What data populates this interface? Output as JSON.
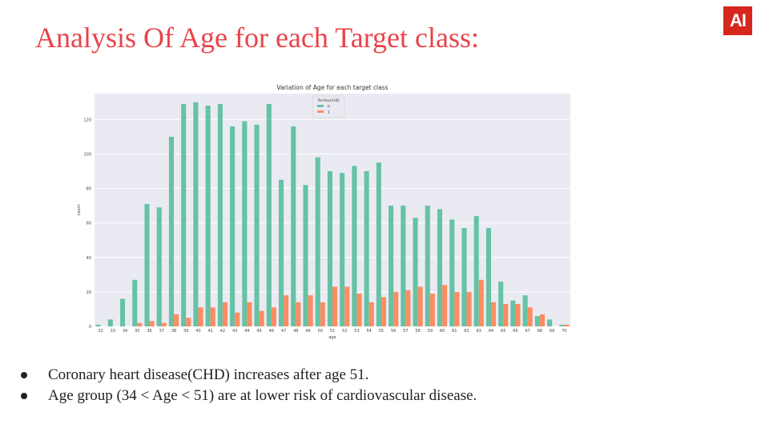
{
  "slide": {
    "title": "Analysis Of Age for each Target class:",
    "logo_text": "AI",
    "bullets": [
      "Coronary heart disease(CHD) increases after age 51.",
      "Age group (34 < Age < 51) are at lower risk of cardiovascular disease."
    ]
  },
  "colors": {
    "title": "#e8434a",
    "logo_bg": "#d7271d",
    "series0": "#66c2a5",
    "series1": "#fc8d62",
    "plot_bg": "#eaeaf2"
  },
  "chart_data": {
    "type": "bar",
    "title": "Variation of Age for each target class",
    "xlabel": "age",
    "ylabel": "count",
    "ylim": [
      0,
      135
    ],
    "yticks": [
      0,
      20,
      40,
      60,
      80,
      100,
      120
    ],
    "grid": true,
    "legend": {
      "title": "TenYearCHD",
      "placement": "top-center"
    },
    "categories": [
      "32",
      "33",
      "34",
      "35",
      "36",
      "37",
      "38",
      "39",
      "40",
      "41",
      "42",
      "43",
      "44",
      "45",
      "46",
      "47",
      "48",
      "49",
      "50",
      "51",
      "52",
      "53",
      "54",
      "55",
      "56",
      "57",
      "58",
      "59",
      "60",
      "61",
      "62",
      "63",
      "64",
      "65",
      "66",
      "67",
      "68",
      "69",
      "70"
    ],
    "series": [
      {
        "name": "0",
        "values": [
          1,
          4,
          16,
          27,
          71,
          69,
          110,
          129,
          130,
          128,
          129,
          116,
          119,
          117,
          129,
          85,
          116,
          82,
          98,
          90,
          89,
          93,
          90,
          95,
          70,
          70,
          63,
          70,
          68,
          62,
          57,
          64,
          57,
          26,
          15,
          18,
          6,
          4,
          1
        ]
      },
      {
        "name": "1",
        "values": [
          0,
          0,
          0,
          2,
          3,
          2,
          7,
          5,
          11,
          11,
          14,
          8,
          14,
          9,
          11,
          18,
          14,
          18,
          14,
          23,
          23,
          19,
          14,
          17,
          20,
          21,
          23,
          19,
          24,
          20,
          20,
          27,
          14,
          13,
          13,
          11,
          7,
          0,
          1
        ]
      }
    ]
  }
}
